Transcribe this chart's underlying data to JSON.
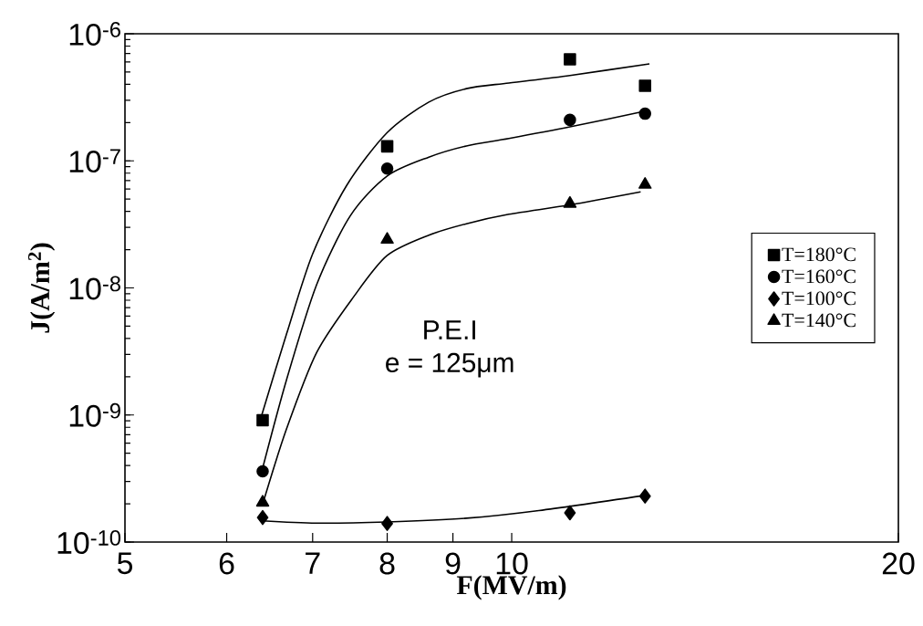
{
  "chart_data": {
    "type": "scatter",
    "xlabel": "F(MV/m)",
    "ylabel": "J(A/m$^{2}$)",
    "log": "xy",
    "xlim": [
      5,
      20
    ],
    "ylim": [
      1e-10,
      1e-06
    ],
    "xticks": [
      5,
      6,
      7,
      8,
      9,
      10,
      20
    ],
    "yticks": [
      {
        "value": 1e-10,
        "label": "10$^{-10}$"
      },
      {
        "value": 1e-09,
        "label": "10$^{-9}$"
      },
      {
        "value": 1e-08,
        "label": "10$^{-8}$"
      },
      {
        "value": 1e-07,
        "label": "10$^{-7}$"
      },
      {
        "value": 1e-06,
        "label": "10$^{-6}$"
      }
    ],
    "legend": "right",
    "annotations": [
      "P.E.I",
      "e = 125μm"
    ],
    "series": [
      {
        "name": "T=180°C",
        "color": "#000000",
        "marker": "square",
        "x": [
          6.4,
          8,
          11.1,
          12.7
        ],
        "values": [
          9.1e-10,
          1.3e-07,
          6.3e-07,
          3.9e-07
        ]
      },
      {
        "name": "T=160°C",
        "color": "#000000",
        "marker": "circle",
        "x": [
          6.4,
          8,
          11.1,
          12.7
        ],
        "values": [
          3.6e-10,
          8.7e-08,
          2.1e-07,
          2.35e-07
        ]
      },
      {
        "name": "T=100°C",
        "color": "#000000",
        "marker": "diamond",
        "x": [
          6.4,
          8,
          11.1,
          12.7
        ],
        "values": [
          1.56e-10,
          1.4e-10,
          1.7e-10,
          2.3e-10
        ]
      },
      {
        "name": "T=140°C",
        "color": "#000000",
        "marker": "triangle",
        "x": [
          6.4,
          8,
          11.1,
          12.7
        ],
        "values": [
          2.05e-10,
          2.4e-08,
          4.6e-08,
          6.5e-08
        ]
      },
      {
        "type": "line",
        "color": "#000000",
        "marker": "none",
        "x": [
          6.39,
          6.68,
          7.0,
          7.44,
          8,
          8.62,
          9.22,
          9.95,
          11.1,
          12.8
        ],
        "values": [
          1e-09,
          4.35e-09,
          1.85e-08,
          6.4e-08,
          1.67e-07,
          2.9e-07,
          3.7e-07,
          4.1e-07,
          4.7e-07,
          5.8e-07
        ]
      },
      {
        "type": "line",
        "color": "#000000",
        "marker": "none",
        "x": [
          6.39,
          6.68,
          7.05,
          7.49,
          8,
          8.62,
          9.22,
          9.95,
          11.1,
          12.8
        ],
        "values": [
          3.6e-10,
          1.9e-09,
          1.06e-08,
          3.7e-08,
          7.6e-08,
          1.07e-07,
          1.31e-07,
          1.5e-07,
          1.85e-07,
          2.5e-07
        ]
      },
      {
        "type": "line",
        "color": "#000000",
        "marker": "none",
        "x": [
          6.42,
          6.68,
          7.05,
          7.54,
          8,
          8.62,
          9.22,
          9.95,
          11.1,
          12.6
        ],
        "values": [
          2.2e-10,
          7.8e-10,
          3.1e-09,
          8.6e-09,
          1.8e-08,
          2.6e-08,
          3.2e-08,
          3.8e-08,
          4.5e-08,
          5.7e-08
        ]
      },
      {
        "type": "line",
        "color": "#000000",
        "marker": "none",
        "x": [
          6.39,
          7.05,
          8,
          9.22,
          10.5,
          12.7
        ],
        "values": [
          1.47e-10,
          1.41e-10,
          1.44e-10,
          1.54e-10,
          1.77e-10,
          2.33e-10
        ]
      }
    ]
  }
}
